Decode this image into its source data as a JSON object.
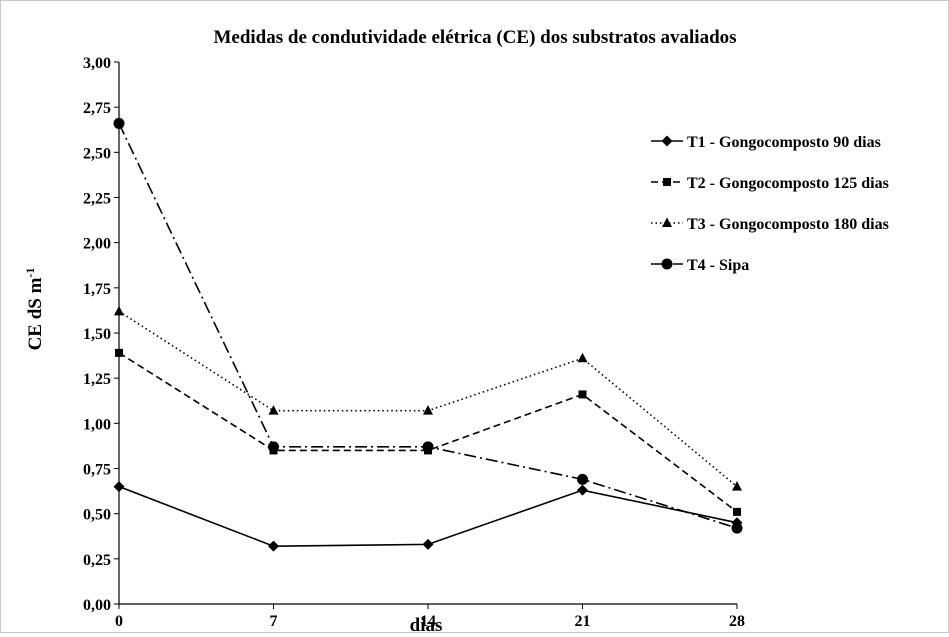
{
  "chart_data": {
    "type": "line",
    "title": "Medidas de condutividade elétrica (CE) dos substratos avaliados",
    "xlabel": "dias",
    "ylabel_main": "CE dS m",
    "ylabel_sup": "-1",
    "x": [
      0,
      7,
      14,
      21,
      28
    ],
    "x_tick_labels": [
      "0",
      "7",
      "14",
      "21",
      "28"
    ],
    "ylim": [
      0,
      3
    ],
    "y_ticks": [
      0,
      0.25,
      0.5,
      0.75,
      1.0,
      1.25,
      1.5,
      1.75,
      2.0,
      2.25,
      2.5,
      2.75,
      3.0
    ],
    "y_tick_labels": [
      "0,00",
      "0,25",
      "0,50",
      "0,75",
      "1,00",
      "1,25",
      "1,50",
      "1,75",
      "2,00",
      "2,25",
      "2,50",
      "2,75",
      "3,00"
    ],
    "grid": false,
    "legend_position": "right",
    "series": [
      {
        "name": "T1 - Gongocomposto 90 dias",
        "values": [
          0.65,
          0.32,
          0.33,
          0.63,
          0.45
        ],
        "marker": "diamond",
        "dash": "solid"
      },
      {
        "name": "T2 - Gongocomposto 125 dias",
        "values": [
          1.39,
          0.85,
          0.85,
          1.16,
          0.51
        ],
        "marker": "square",
        "dash": "dashed"
      },
      {
        "name": "T3 - Gongocomposto 180 dias",
        "values": [
          1.62,
          1.07,
          1.07,
          1.36,
          0.65
        ],
        "marker": "triangle",
        "dash": "dotted"
      },
      {
        "name": "T4 - Sipa",
        "values": [
          2.66,
          0.87,
          0.87,
          0.69,
          0.42
        ],
        "marker": "circle",
        "dash": "dashdot"
      }
    ]
  }
}
